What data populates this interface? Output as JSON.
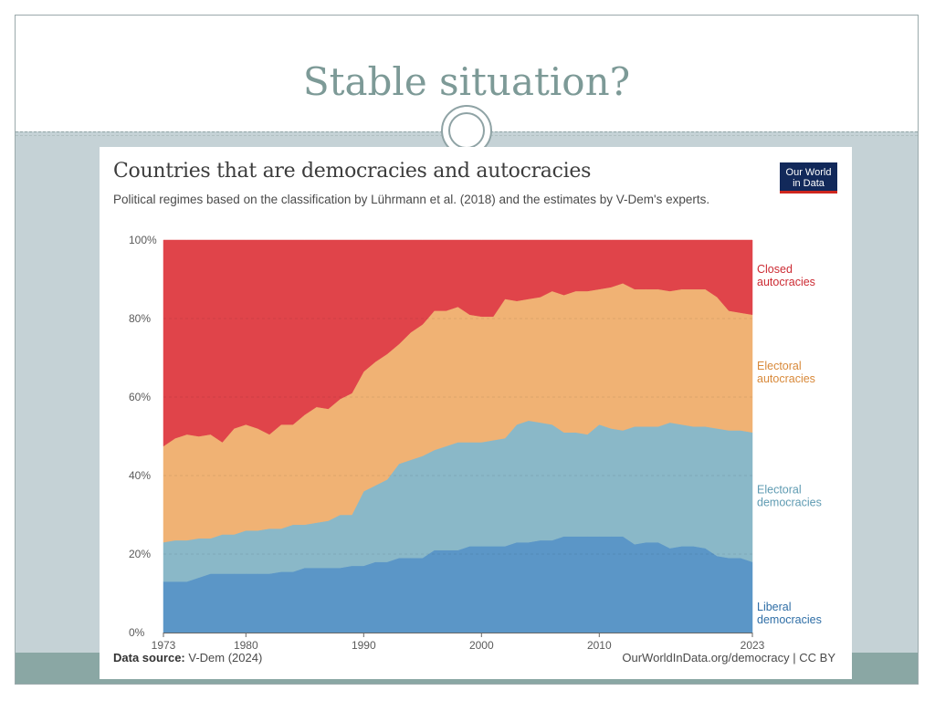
{
  "slide": {
    "title": "Stable situation?"
  },
  "chart_header": {
    "title": "Countries that are democracies and autocracies",
    "subtitle": "Political regimes based on the classification by Lührmann et al. (2018) and the estimates by V-Dem's experts.",
    "logo_line1": "Our World",
    "logo_line2": "in Data"
  },
  "footer": {
    "source_label": "Data source:",
    "source_value": "V-Dem (2024)",
    "attribution": "OurWorldInData.org/democracy | CC BY"
  },
  "colors": {
    "liberal": "#5b96c7",
    "electoral_dem": "#8ab8c8",
    "electoral_aut": "#f0b274",
    "closed": "#e0444a",
    "liberal_text": "#2f6ea6",
    "electoral_dem_text": "#5f9bb2",
    "electoral_aut_text": "#d8893a",
    "closed_text": "#cc2b33"
  },
  "chart_data": {
    "type": "area",
    "stacked": true,
    "normalized": true,
    "x": [
      1973,
      1974,
      1975,
      1976,
      1977,
      1978,
      1979,
      1980,
      1981,
      1982,
      1983,
      1984,
      1985,
      1986,
      1987,
      1988,
      1989,
      1990,
      1991,
      1992,
      1993,
      1994,
      1995,
      1996,
      1997,
      1998,
      1999,
      2000,
      2001,
      2002,
      2003,
      2004,
      2005,
      2006,
      2007,
      2008,
      2009,
      2010,
      2011,
      2012,
      2013,
      2014,
      2015,
      2016,
      2017,
      2018,
      2019,
      2020,
      2021,
      2022,
      2023
    ],
    "series": [
      {
        "name": "Liberal democracies",
        "label_lines": [
          "Liberal",
          "democracies"
        ],
        "values": [
          13,
          13,
          13,
          14,
          15,
          15,
          15,
          15,
          15,
          15,
          15.5,
          15.5,
          16.5,
          16.5,
          16.5,
          16.5,
          17,
          17,
          18,
          18,
          19,
          19,
          19,
          21,
          21,
          21,
          22,
          22,
          22,
          22,
          23,
          23,
          23.5,
          23.5,
          24.5,
          24.5,
          24.5,
          24.5,
          24.5,
          24.5,
          22.5,
          23,
          23,
          21.5,
          22,
          22,
          21.5,
          19.5,
          19,
          19,
          18
        ]
      },
      {
        "name": "Electoral democracies",
        "label_lines": [
          "Electoral",
          "democracies"
        ],
        "values": [
          10,
          10.5,
          10.5,
          10,
          9,
          10,
          10,
          11,
          11,
          11.5,
          11,
          12,
          11,
          11.5,
          12,
          13.5,
          13,
          19,
          19.5,
          21,
          24,
          25,
          26,
          25.5,
          26.5,
          27.5,
          26.5,
          26.5,
          27,
          27.5,
          30,
          31,
          30,
          29.5,
          26.5,
          26.5,
          26,
          28.5,
          27.5,
          27,
          30,
          29.5,
          29.5,
          32,
          31,
          30.5,
          31,
          32.5,
          32.5,
          32.5,
          33
        ]
      },
      {
        "name": "Electoral autocracies",
        "label_lines": [
          "Electoral",
          "autocracies"
        ],
        "values": [
          24.5,
          26,
          27,
          26,
          26.5,
          23.5,
          27,
          27,
          26,
          24,
          26.5,
          25.5,
          28,
          29.5,
          28.5,
          29.5,
          31,
          30.5,
          31.5,
          32,
          30.5,
          32.5,
          33.5,
          35.5,
          34.5,
          34.5,
          32.5,
          32,
          31.5,
          35.5,
          31.5,
          31,
          32,
          34,
          35,
          36,
          36.5,
          34.5,
          36,
          37.5,
          35,
          35,
          35,
          33.5,
          34.5,
          35,
          35,
          33.5,
          30.5,
          30,
          30
        ]
      },
      {
        "name": "Closed autocracies",
        "label_lines": [
          "Closed",
          "autocracies"
        ],
        "values": [
          52.5,
          50.5,
          49.5,
          50,
          49.5,
          51.5,
          48,
          47,
          48,
          49.5,
          47,
          47,
          44.5,
          42.5,
          43,
          40.5,
          39,
          33.5,
          31,
          29,
          26.5,
          23.5,
          21.5,
          18,
          18,
          17,
          19,
          19.5,
          19.5,
          15,
          15.5,
          15,
          14.5,
          13,
          14,
          13,
          13,
          12.5,
          12,
          11,
          12.5,
          12.5,
          12.5,
          13,
          12.5,
          12.5,
          12.5,
          14.5,
          18,
          18.5,
          19
        ]
      }
    ],
    "y_axis": {
      "min": 0,
      "max": 100,
      "ticks": [
        0,
        20,
        40,
        60,
        80,
        100
      ],
      "tick_labels": [
        "0%",
        "20%",
        "40%",
        "60%",
        "80%",
        "100%"
      ]
    },
    "x_axis": {
      "ticks": [
        1973,
        1980,
        1990,
        2000,
        2010,
        2023
      ],
      "tick_labels": [
        "1973",
        "1980",
        "1990",
        "2000",
        "2010",
        "2023"
      ]
    },
    "grid": true,
    "legend_position": "right"
  }
}
